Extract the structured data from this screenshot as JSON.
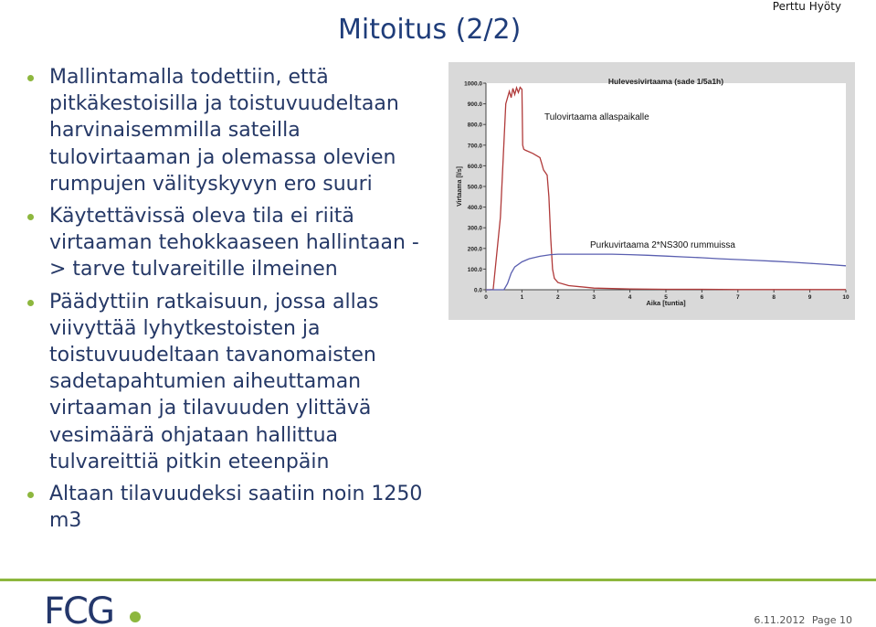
{
  "header": {
    "author": "Perttu Hyöty",
    "title": "Mitoitus (2/2)"
  },
  "bullets": [
    "Mallintamalla todettiin, että pitkäkestoisilla ja toistuvuudeltaan harvinaisemmilla sateilla tulovirtaaman ja olemassa olevien rumpujen välityskyvyn ero suuri",
    "Käytettävissä oleva tila ei riitä virtaaman tehokkaaseen hallintaan -> tarve tulvareitille ilmeinen",
    "Päädyttiin ratkaisuun, jossa allas viivyttää lyhytkestoisten ja toistuvuudeltaan tavanomaisten sadetapahtumien aiheuttaman virtaaman ja tilavuuden ylittävä vesimäärä ohjataan hallittua tulvareittiä pitkin eteenpäin",
    "Altaan tilavuudeksi saatiin noin 1250 m3"
  ],
  "chart_data": {
    "type": "line",
    "title": "Hulevesivirtaama (sade 1/5a1h)",
    "xlabel": "Aika [tuntia]",
    "ylabel": "Virtaama [l/s]",
    "xlim": [
      0,
      10
    ],
    "ylim": [
      0,
      1000
    ],
    "xticks": [
      "0",
      "1",
      "2",
      "3",
      "4",
      "5",
      "6",
      "7",
      "8",
      "9",
      "10"
    ],
    "yticks": [
      "0.0",
      "100.0",
      "200.0",
      "300.0",
      "400.0",
      "500.0",
      "600.0",
      "700.0",
      "800.0",
      "900.0",
      "1000.0"
    ],
    "grid": false,
    "series": [
      {
        "name": "Tulovirtaama allaspaikalle",
        "color": "#b03a3a",
        "x": [
          0,
          0.1,
          0.2,
          0.4,
          0.55,
          0.65,
          0.7,
          0.75,
          0.8,
          0.85,
          0.9,
          0.95,
          1.0,
          1.02,
          1.05,
          1.1,
          1.3,
          1.5,
          1.55,
          1.6,
          1.7,
          1.75,
          1.8,
          1.85,
          1.9,
          2.0,
          2.3,
          3.0,
          4.0,
          5.0,
          6.0,
          7.0,
          8.0,
          9.0,
          10.0
        ],
        "y": [
          0,
          0,
          1,
          350,
          900,
          960,
          930,
          975,
          945,
          978,
          955,
          980,
          970,
          700,
          680,
          675,
          660,
          640,
          610,
          580,
          555,
          450,
          250,
          100,
          55,
          35,
          20,
          8,
          4,
          2,
          2,
          1,
          1,
          1,
          1
        ]
      },
      {
        "name": "Purkuvirtaama 2*NS300 rummuissa",
        "color": "#5a5fb0",
        "x": [
          0,
          0.5,
          0.6,
          0.7,
          0.8,
          1.0,
          1.2,
          1.5,
          1.8,
          2.0,
          2.5,
          3.0,
          3.5,
          4.0,
          4.5,
          5.0,
          5.5,
          6.0,
          6.5,
          7.0,
          7.5,
          8.0,
          8.5,
          9.0,
          9.5,
          10.0
        ],
        "y": [
          0,
          0,
          30,
          80,
          110,
          135,
          150,
          162,
          170,
          172,
          172,
          172,
          172,
          170,
          167,
          163,
          159,
          155,
          150,
          146,
          142,
          138,
          133,
          128,
          122,
          116
        ]
      }
    ],
    "annotations": [
      "Tulovirtaama allaspaikalle",
      "Purkuvirtaama 2*NS300 rummuissa"
    ]
  },
  "footer": {
    "logo_text": "FCG",
    "date": "6.11.2012",
    "page_label": "Page 10"
  },
  "colors": {
    "accent": "#8db73e",
    "title": "#1f3d7a",
    "text": "#253866",
    "chart_bg": "#d9d9d9"
  }
}
